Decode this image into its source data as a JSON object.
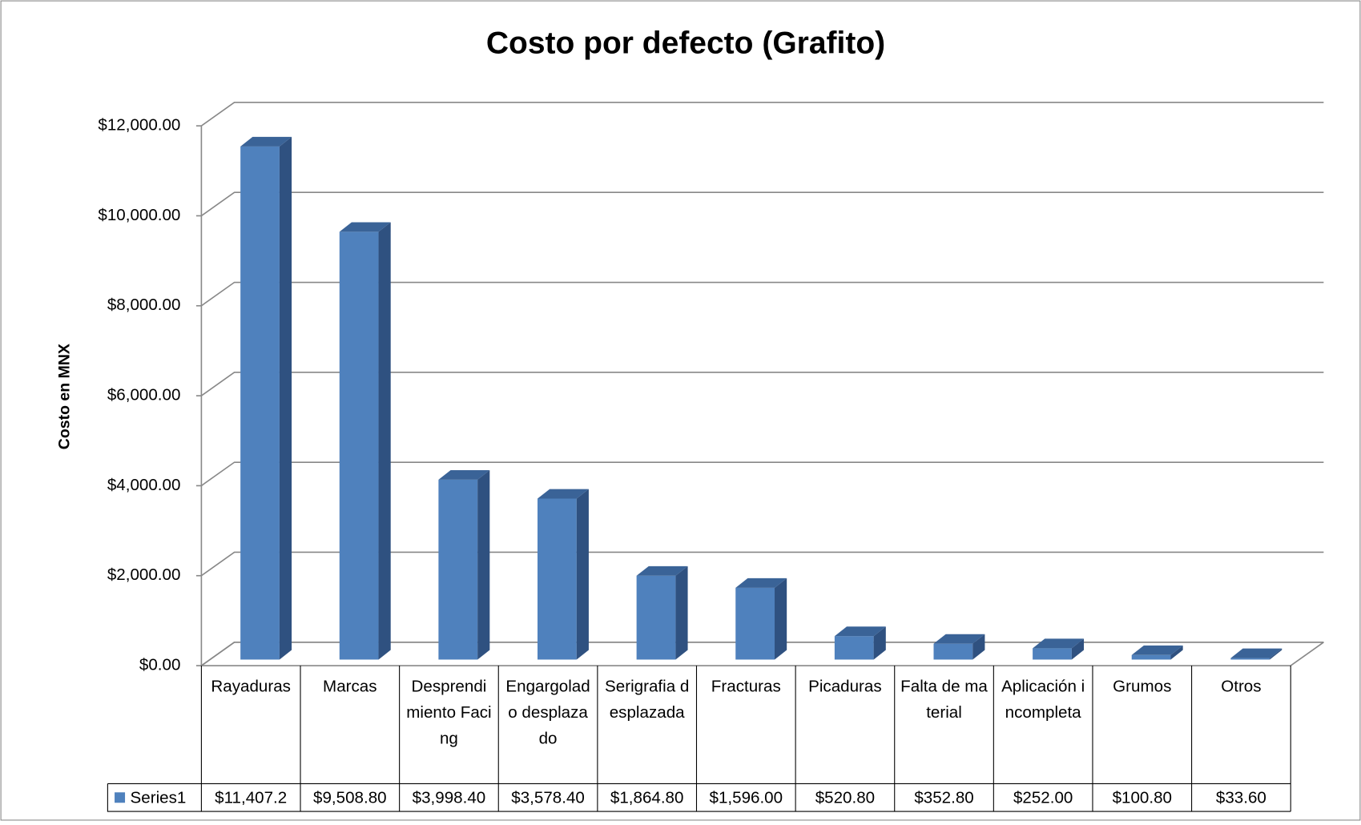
{
  "chart_data": {
    "type": "bar3d",
    "title": "Costo por defecto (Grafito)",
    "y_label": "Costo en MNX",
    "categories": [
      "Rayaduras",
      "Marcas",
      "Desprendimiento Facing",
      "Engargolado desplazado",
      "Serigrafia desplazada",
      "Fracturas",
      "Picaduras",
      "Falta de material",
      "Aplicación incompleta",
      "Grumos",
      "Otros"
    ],
    "series": [
      {
        "name": "Series1",
        "color": "#4f81bd",
        "values": [
          11407.2,
          9508.8,
          3998.4,
          3578.4,
          1864.8,
          1596,
          520.8,
          352.8,
          252,
          100.8,
          33.6
        ],
        "value_labels": [
          "$11,407.2",
          "$9,508.80",
          "$3,998.40",
          "$3,578.40",
          "$1,864.80",
          "$1,596.00",
          "$520.80",
          "$352.80",
          "$252.00",
          "$100.80",
          "$33.60"
        ]
      }
    ],
    "ylim": [
      0,
      12000
    ],
    "yticks": [
      {
        "value": 0,
        "label": "$0.00"
      },
      {
        "value": 2000,
        "label": "$2,000.00"
      },
      {
        "value": 4000,
        "label": "$4,000.00"
      },
      {
        "value": 6000,
        "label": "$6,000.00"
      },
      {
        "value": 8000,
        "label": "$8,000.00"
      },
      {
        "value": 10000,
        "label": "$10,000.00"
      },
      {
        "value": 12000,
        "label": "$12,000.00"
      }
    ],
    "grid": true,
    "data_table": true
  }
}
